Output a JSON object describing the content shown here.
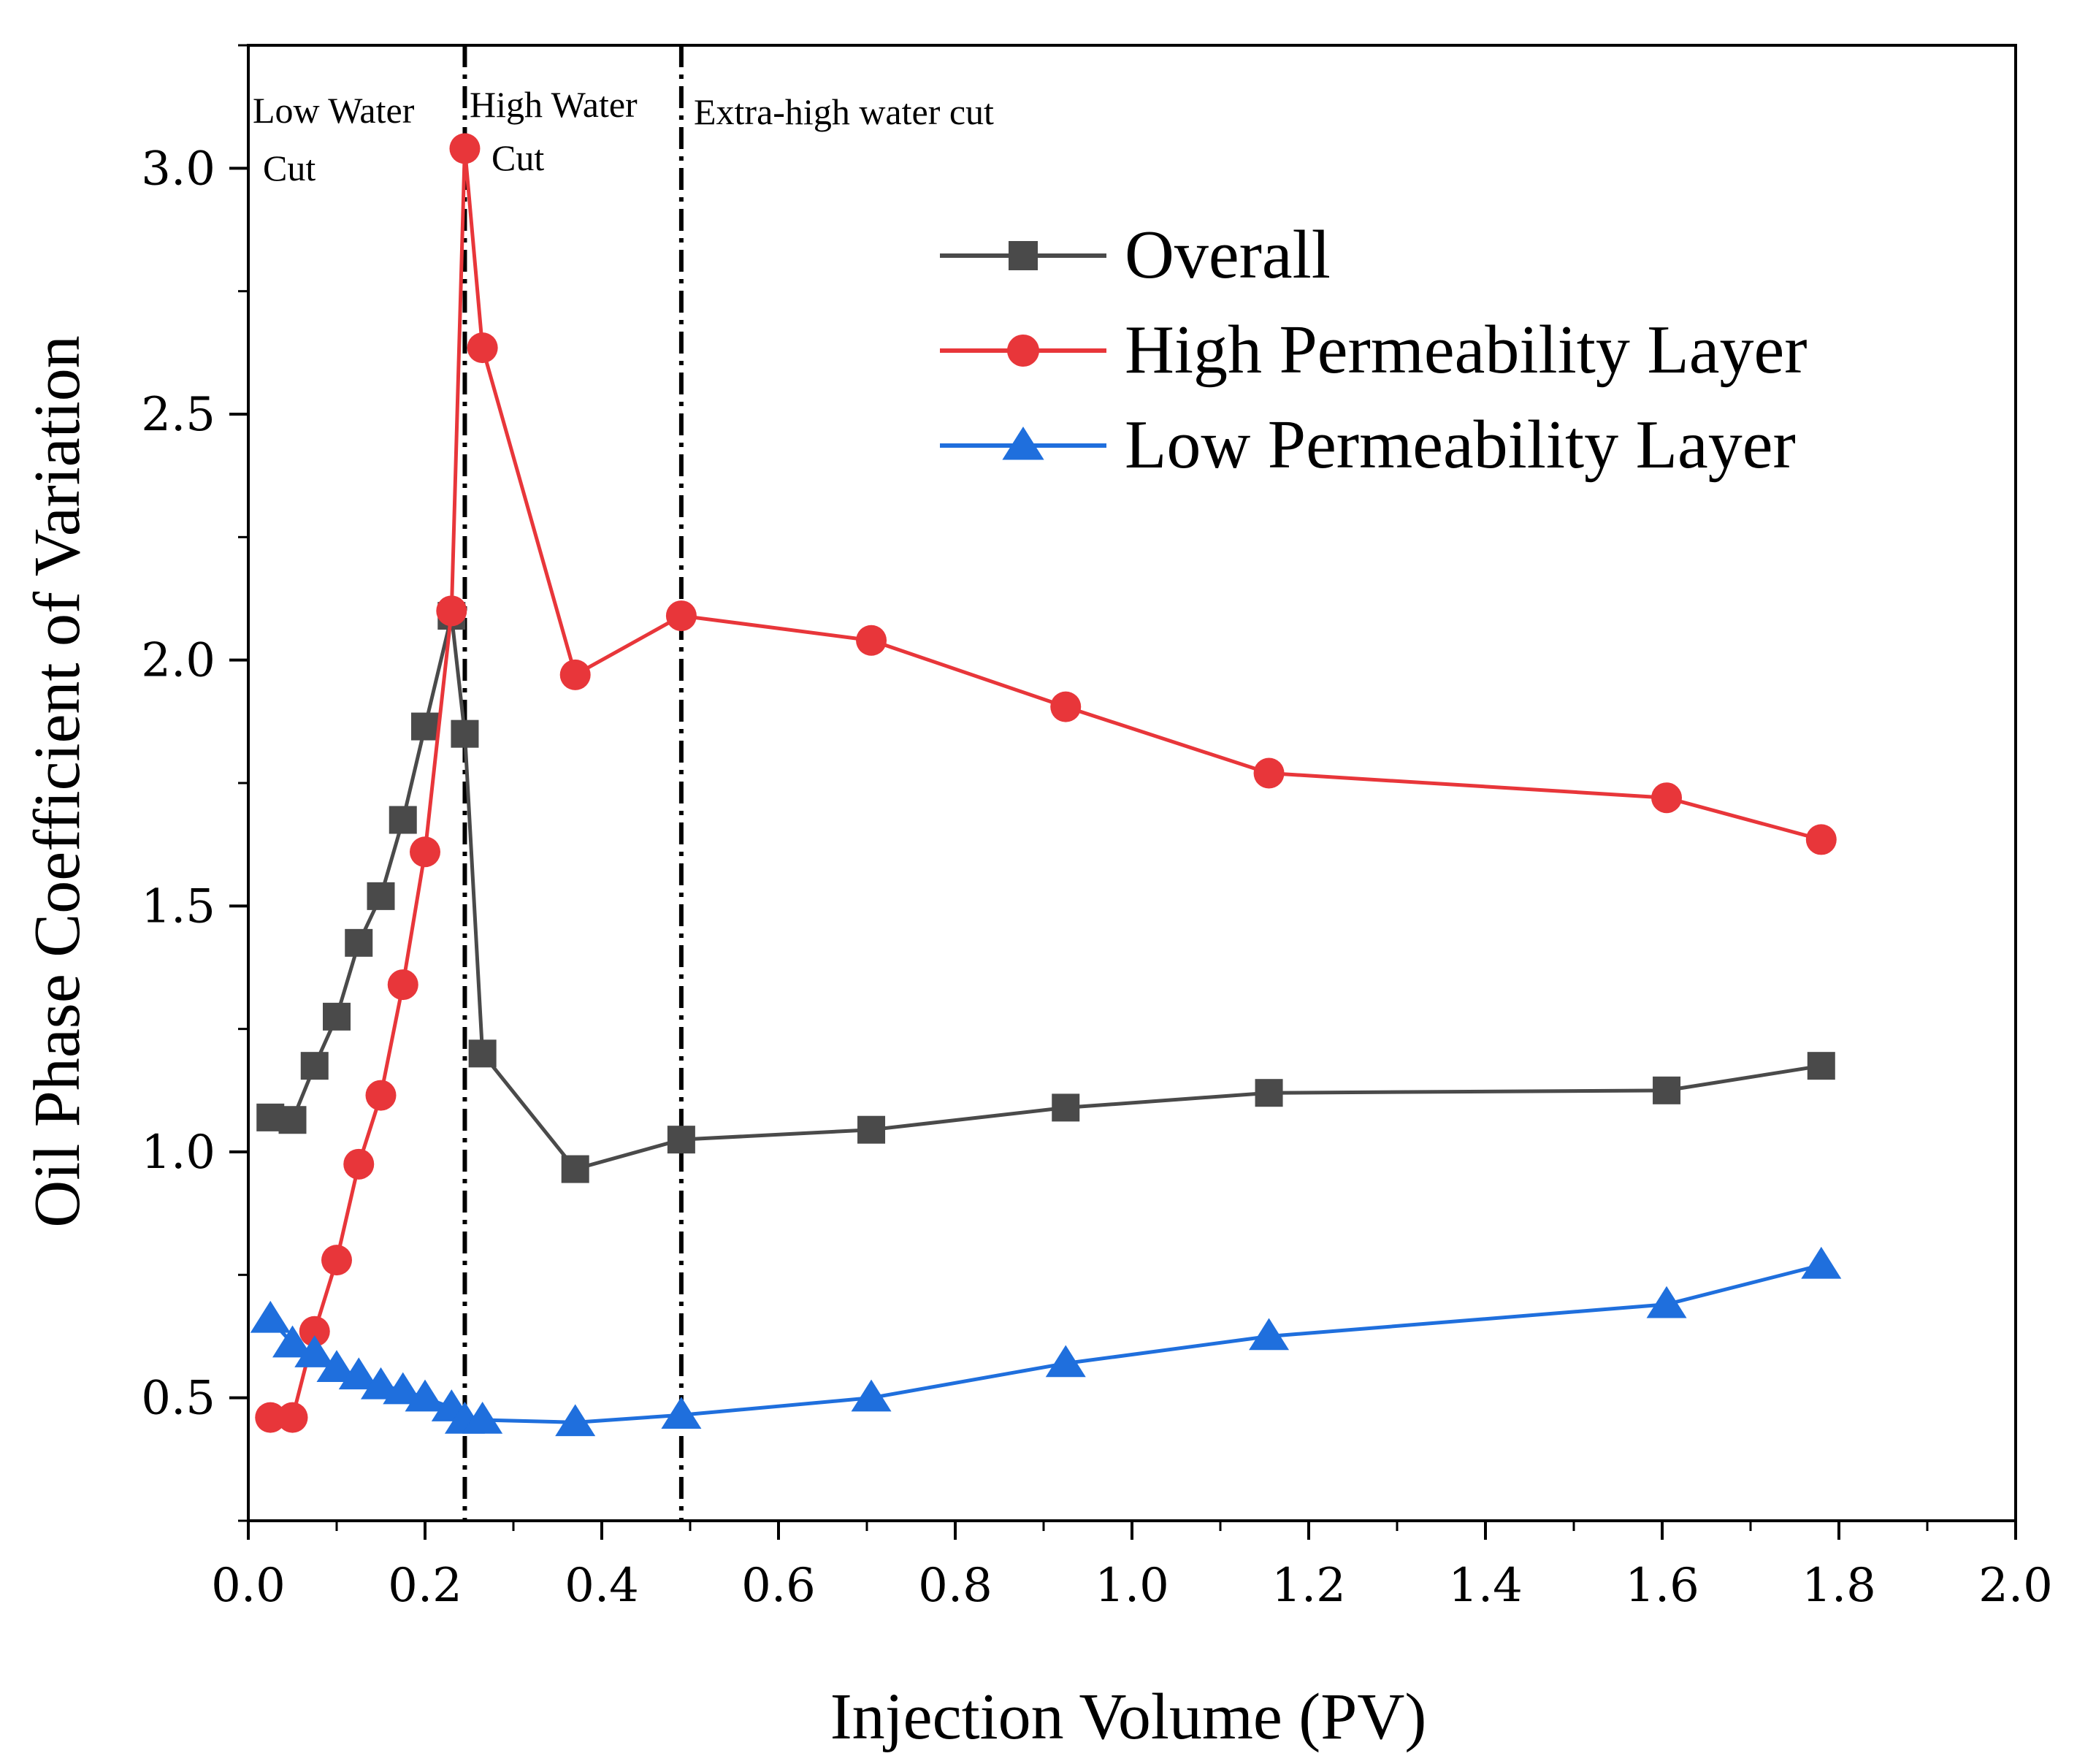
{
  "chart_data": {
    "type": "line",
    "xlabel": "Injection Volume (PV)",
    "ylabel": "Oil Phase Coefficient of Variation",
    "xlim": [
      0.0,
      2.0
    ],
    "ylim": [
      0.25,
      3.25
    ],
    "xticks": [
      "0.0",
      "0.2",
      "0.4",
      "0.6",
      "0.8",
      "1.0",
      "1.2",
      "1.4",
      "1.6",
      "1.8",
      "2.0"
    ],
    "xtick_values": [
      0.0,
      0.2,
      0.4,
      0.6,
      0.8,
      1.0,
      1.2,
      1.4,
      1.6,
      1.8,
      2.0
    ],
    "yticks": [
      "0.5",
      "1.0",
      "1.5",
      "2.0",
      "2.5",
      "3.0"
    ],
    "ytick_values": [
      0.5,
      1.0,
      1.5,
      2.0,
      2.5,
      3.0
    ],
    "grid": false,
    "legend_position": "top-right",
    "series": [
      {
        "name": "Overall",
        "marker": "square",
        "color": "#4a4a4a",
        "points": [
          [
            0.025,
            1.07
          ],
          [
            0.05,
            1.065
          ],
          [
            0.075,
            1.175
          ],
          [
            0.1,
            1.275
          ],
          [
            0.125,
            1.425
          ],
          [
            0.15,
            1.52
          ],
          [
            0.175,
            1.675
          ],
          [
            0.2,
            1.865
          ],
          [
            0.23,
            2.09
          ],
          [
            0.245,
            1.85
          ],
          [
            0.265,
            1.2
          ],
          [
            0.37,
            0.965
          ],
          [
            0.49,
            1.025
          ],
          [
            0.705,
            1.045
          ],
          [
            0.925,
            1.09
          ],
          [
            1.155,
            1.12
          ],
          [
            1.605,
            1.125
          ],
          [
            1.78,
            1.175
          ]
        ]
      },
      {
        "name": "High Permeability Layer",
        "marker": "circle",
        "color": "#e8363a",
        "points": [
          [
            0.025,
            0.46
          ],
          [
            0.05,
            0.46
          ],
          [
            0.075,
            0.635
          ],
          [
            0.1,
            0.78
          ],
          [
            0.125,
            0.975
          ],
          [
            0.15,
            1.115
          ],
          [
            0.175,
            1.34
          ],
          [
            0.2,
            1.61
          ],
          [
            0.23,
            2.1
          ],
          [
            0.245,
            3.04
          ],
          [
            0.265,
            2.635
          ],
          [
            0.37,
            1.97
          ],
          [
            0.49,
            2.09
          ],
          [
            0.705,
            2.04
          ],
          [
            0.925,
            1.905
          ],
          [
            1.155,
            1.77
          ],
          [
            1.605,
            1.72
          ],
          [
            1.78,
            1.635
          ]
        ]
      },
      {
        "name": "Low Permeability Layer",
        "marker": "triangle",
        "color": "#1f6fdd",
        "points": [
          [
            0.025,
            0.66
          ],
          [
            0.05,
            0.61
          ],
          [
            0.075,
            0.59
          ],
          [
            0.1,
            0.56
          ],
          [
            0.125,
            0.545
          ],
          [
            0.15,
            0.525
          ],
          [
            0.175,
            0.515
          ],
          [
            0.2,
            0.5
          ],
          [
            0.23,
            0.48
          ],
          [
            0.245,
            0.455
          ],
          [
            0.265,
            0.455
          ],
          [
            0.37,
            0.45
          ],
          [
            0.49,
            0.465
          ],
          [
            0.705,
            0.5
          ],
          [
            0.925,
            0.57
          ],
          [
            1.155,
            0.625
          ],
          [
            1.605,
            0.69
          ],
          [
            1.78,
            0.77
          ]
        ]
      }
    ],
    "divider_x": [
      0.245,
      0.49
    ],
    "annotations": [
      {
        "line1": "Low Water",
        "line2": "Cut"
      },
      {
        "line1": "High Water",
        "line2": "Cut"
      },
      {
        "line1": "Extra-high water cut",
        "line2": ""
      }
    ]
  }
}
